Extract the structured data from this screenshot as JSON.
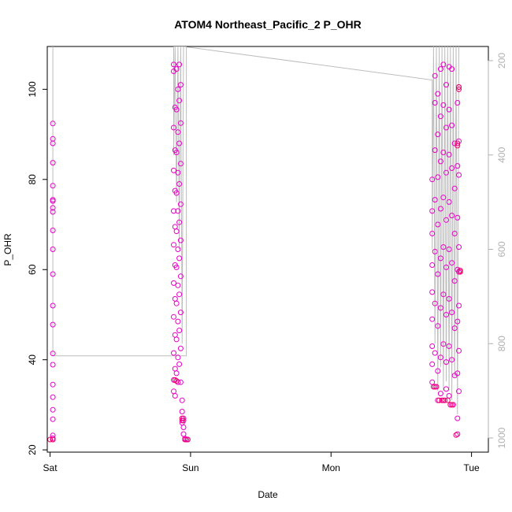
{
  "chart_data": {
    "type": "scatter",
    "title": "ATOM4 Northeast_Pacific_2 P_OHR",
    "xlabel": "Date",
    "ylabel": "P_OHR",
    "x_ticks": [
      "Sat",
      "Sun",
      "Mon",
      "Tue"
    ],
    "y_ticks": [
      "20",
      "40",
      "60",
      "80",
      "100"
    ],
    "y2_ticks": [
      "200",
      "400",
      "600",
      "800",
      "1000"
    ],
    "xlim": [
      -0.02,
      3.12
    ],
    "ylim": [
      19.5,
      109.5
    ],
    "y2lim": [
      170,
      1030
    ],
    "colors": {
      "points": "#e800c8",
      "points_dense": "#f0006a",
      "line": "#bdbdbd",
      "axis": "#000000",
      "axis2": "#b0b0b0"
    },
    "series": [
      {
        "values": [
          [
            0.02,
            22.3
          ],
          [
            0.02,
            22.6
          ],
          [
            0.02,
            23.2
          ],
          [
            0.02,
            26.8
          ],
          [
            0.02,
            28.9
          ],
          [
            0.02,
            31.7
          ],
          [
            0.02,
            34.5
          ],
          [
            0.02,
            38.9
          ],
          [
            0.02,
            41.4
          ],
          [
            0.02,
            47.8
          ],
          [
            0.02,
            52.0
          ],
          [
            0.02,
            59.0
          ],
          [
            0.02,
            64.5
          ],
          [
            0.02,
            68.7
          ],
          [
            0.02,
            72.8
          ],
          [
            0.02,
            73.7
          ],
          [
            0.02,
            75.2
          ],
          [
            0.02,
            75.5
          ],
          [
            0.02,
            78.6
          ],
          [
            0.02,
            83.7
          ],
          [
            0.02,
            88.0
          ],
          [
            0.02,
            89.0
          ],
          [
            0.02,
            92.4
          ],
          [
            0.88,
            105.5
          ],
          [
            0.88,
            104.0
          ],
          [
            0.89,
            96.0
          ],
          [
            0.88,
            91.5
          ],
          [
            0.89,
            86.5
          ],
          [
            0.88,
            82.0
          ],
          [
            0.89,
            77.5
          ],
          [
            0.88,
            73.0
          ],
          [
            0.89,
            69.5
          ],
          [
            0.88,
            65.5
          ],
          [
            0.89,
            61.0
          ],
          [
            0.88,
            57.0
          ],
          [
            0.89,
            53.5
          ],
          [
            0.88,
            49.5
          ],
          [
            0.89,
            45.5
          ],
          [
            0.88,
            41.5
          ],
          [
            0.89,
            38.0
          ],
          [
            0.88,
            35.5
          ],
          [
            0.88,
            33.0
          ],
          [
            0.89,
            32.0
          ],
          [
            0.9,
            104.5
          ],
          [
            0.91,
            100.0
          ],
          [
            0.9,
            95.5
          ],
          [
            0.91,
            90.5
          ],
          [
            0.9,
            86.0
          ],
          [
            0.91,
            81.5
          ],
          [
            0.9,
            77.0
          ],
          [
            0.91,
            73.0
          ],
          [
            0.9,
            68.5
          ],
          [
            0.91,
            64.5
          ],
          [
            0.9,
            60.5
          ],
          [
            0.91,
            56.5
          ],
          [
            0.9,
            52.5
          ],
          [
            0.91,
            48.5
          ],
          [
            0.9,
            44.5
          ],
          [
            0.91,
            40.5
          ],
          [
            0.9,
            37.0
          ],
          [
            0.91,
            35.0
          ],
          [
            0.92,
            105.5
          ],
          [
            0.93,
            101.0
          ],
          [
            0.92,
            97.5
          ],
          [
            0.93,
            92.5
          ],
          [
            0.92,
            88.0
          ],
          [
            0.93,
            83.5
          ],
          [
            0.92,
            79.0
          ],
          [
            0.93,
            74.5
          ],
          [
            0.92,
            70.5
          ],
          [
            0.93,
            66.5
          ],
          [
            0.92,
            62.5
          ],
          [
            0.93,
            58.5
          ],
          [
            0.92,
            54.5
          ],
          [
            0.93,
            50.5
          ],
          [
            0.92,
            46.5
          ],
          [
            0.93,
            42.5
          ],
          [
            0.92,
            39.0
          ],
          [
            0.93,
            35.0
          ],
          [
            0.94,
            31.0
          ],
          [
            0.94,
            28.5
          ],
          [
            0.95,
            27.0
          ],
          [
            0.95,
            26.5
          ],
          [
            0.94,
            26.0
          ],
          [
            0.95,
            25.0
          ],
          [
            0.95,
            23.5
          ],
          [
            0.96,
            22.5
          ],
          [
            0.97,
            22.3
          ],
          [
            0.98,
            22.3
          ],
          [
            2.72,
            80.0
          ],
          [
            2.72,
            73.0
          ],
          [
            2.72,
            68.0
          ],
          [
            2.72,
            61.0
          ],
          [
            2.72,
            55.0
          ],
          [
            2.72,
            49.0
          ],
          [
            2.72,
            43.0
          ],
          [
            2.72,
            39.0
          ],
          [
            2.72,
            35.0
          ],
          [
            2.74,
            103.0
          ],
          [
            2.74,
            97.0
          ],
          [
            2.74,
            86.5
          ],
          [
            2.74,
            75.5
          ],
          [
            2.74,
            64.0
          ],
          [
            2.74,
            52.5
          ],
          [
            2.74,
            41.5
          ],
          [
            2.74,
            34.0
          ],
          [
            2.76,
            99.0
          ],
          [
            2.76,
            90.0
          ],
          [
            2.76,
            80.5
          ],
          [
            2.76,
            70.0
          ],
          [
            2.76,
            59.0
          ],
          [
            2.76,
            47.5
          ],
          [
            2.76,
            37.5
          ],
          [
            2.76,
            31.0
          ],
          [
            2.78,
            104.5
          ],
          [
            2.78,
            94.0
          ],
          [
            2.78,
            84.0
          ],
          [
            2.78,
            73.5
          ],
          [
            2.78,
            62.5
          ],
          [
            2.78,
            51.5
          ],
          [
            2.78,
            40.5
          ],
          [
            2.78,
            32.5
          ],
          [
            2.8,
            105.5
          ],
          [
            2.8,
            96.5
          ],
          [
            2.8,
            86.0
          ],
          [
            2.8,
            76.0
          ],
          [
            2.8,
            65.0
          ],
          [
            2.8,
            54.5
          ],
          [
            2.8,
            43.5
          ],
          [
            2.8,
            31.0
          ],
          [
            2.82,
            101.0
          ],
          [
            2.82,
            91.5
          ],
          [
            2.82,
            81.5
          ],
          [
            2.82,
            71.0
          ],
          [
            2.82,
            60.5
          ],
          [
            2.82,
            50.0
          ],
          [
            2.82,
            39.5
          ],
          [
            2.82,
            33.5
          ],
          [
            2.84,
            105.0
          ],
          [
            2.84,
            95.5
          ],
          [
            2.84,
            85.5
          ],
          [
            2.84,
            75.0
          ],
          [
            2.84,
            64.5
          ],
          [
            2.84,
            53.5
          ],
          [
            2.84,
            43.0
          ],
          [
            2.84,
            32.0
          ],
          [
            2.86,
            104.5
          ],
          [
            2.86,
            92.0
          ],
          [
            2.86,
            82.5
          ],
          [
            2.86,
            72.0
          ],
          [
            2.86,
            61.5
          ],
          [
            2.86,
            50.5
          ],
          [
            2.86,
            40.0
          ],
          [
            2.86,
            30.0
          ],
          [
            2.88,
            88.0
          ],
          [
            2.88,
            78.0
          ],
          [
            2.88,
            68.0
          ],
          [
            2.88,
            57.5
          ],
          [
            2.88,
            47.0
          ],
          [
            2.88,
            36.5
          ],
          [
            2.9,
            97.0
          ],
          [
            2.9,
            83.0
          ],
          [
            2.9,
            71.5
          ],
          [
            2.9,
            60.0
          ],
          [
            2.9,
            48.5
          ],
          [
            2.9,
            37.0
          ],
          [
            2.9,
            27.0
          ],
          [
            2.9,
            23.5
          ],
          [
            2.91,
            100.5
          ],
          [
            2.91,
            88.5
          ],
          [
            2.91,
            81.0
          ],
          [
            2.91,
            65.0
          ],
          [
            2.91,
            59.5
          ],
          [
            2.91,
            52.0
          ],
          [
            2.91,
            42.0
          ],
          [
            2.91,
            33.0
          ]
        ]
      },
      {
        "values": [
          [
            0.0,
            22.3
          ],
          [
            0.02,
            22.3
          ],
          [
            0.89,
            35.5
          ],
          [
            0.9,
            35.3
          ],
          [
            0.94,
            27.0
          ],
          [
            0.94,
            26.5
          ],
          [
            0.96,
            22.3
          ],
          [
            0.98,
            22.3
          ],
          [
            2.73,
            34.0
          ],
          [
            2.75,
            34.0
          ],
          [
            2.77,
            31.0
          ],
          [
            2.79,
            31.0
          ],
          [
            2.81,
            31.0
          ],
          [
            2.83,
            31.0
          ],
          [
            2.85,
            30.0
          ],
          [
            2.87,
            30.0
          ],
          [
            2.89,
            23.3
          ],
          [
            2.9,
            88.0
          ],
          [
            2.9,
            87.5
          ],
          [
            2.91,
            100.5
          ],
          [
            2.91,
            100.0
          ],
          [
            2.92,
            59.5
          ],
          [
            2.92,
            59.8
          ]
        ]
      }
    ],
    "line_y2": [
      [
        0.02,
        170
      ],
      [
        0.02,
        300
      ],
      [
        0.02,
        500
      ],
      [
        0.02,
        680
      ],
      [
        0.02,
        826
      ],
      [
        0.02,
        826
      ],
      [
        0.97,
        826
      ],
      [
        0.97,
        170
      ],
      [
        0.88,
        170
      ],
      [
        0.88,
        400
      ],
      [
        0.89,
        170
      ],
      [
        0.9,
        500
      ],
      [
        0.91,
        170
      ],
      [
        0.92,
        600
      ],
      [
        0.93,
        170
      ],
      [
        0.94,
        800
      ],
      [
        0.95,
        170
      ],
      [
        0.95,
        170
      ],
      [
        2.72,
        241
      ],
      [
        2.72,
        600
      ],
      [
        2.73,
        170
      ],
      [
        2.74,
        800
      ],
      [
        2.75,
        170
      ],
      [
        2.76,
        900
      ],
      [
        2.77,
        170
      ],
      [
        2.78,
        850
      ],
      [
        2.79,
        170
      ],
      [
        2.8,
        900
      ],
      [
        2.81,
        170
      ],
      [
        2.82,
        880
      ],
      [
        2.83,
        170
      ],
      [
        2.84,
        900
      ],
      [
        2.85,
        170
      ],
      [
        2.86,
        920
      ],
      [
        2.87,
        170
      ],
      [
        2.88,
        870
      ],
      [
        2.89,
        170
      ],
      [
        2.9,
        950
      ],
      [
        2.91,
        170
      ]
    ]
  }
}
